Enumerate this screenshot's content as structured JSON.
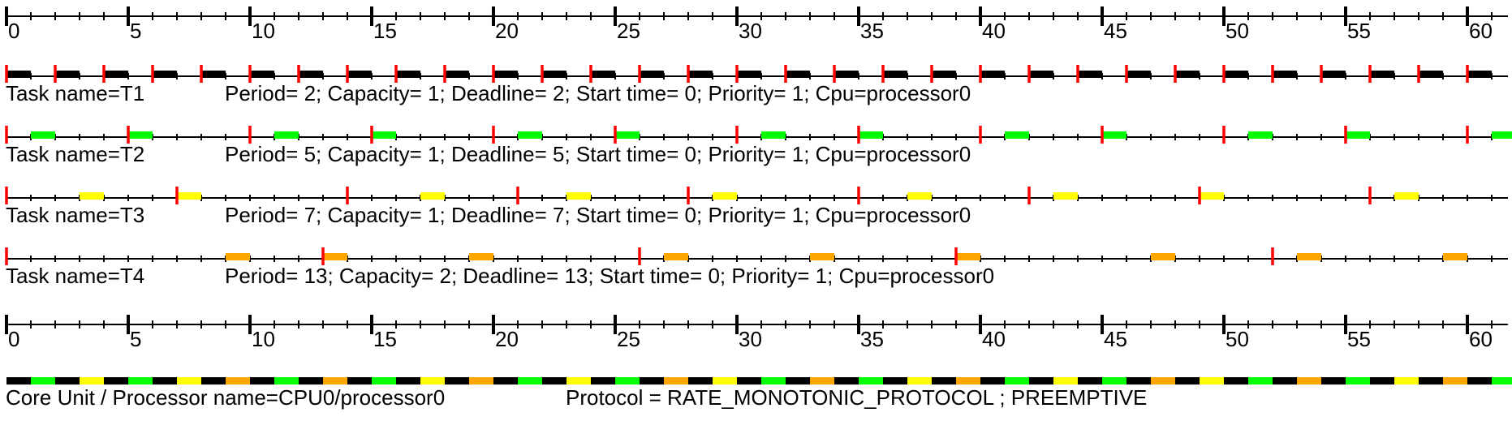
{
  "chart_data": {
    "type": "gantt",
    "time_axis": {
      "min": 0,
      "max": 61,
      "major_step": 5,
      "minor_step": 1,
      "tick_labels": [
        "0",
        "5",
        "10",
        "15",
        "20",
        "25",
        "30",
        "35",
        "40",
        "45",
        "50",
        "55",
        "60"
      ]
    },
    "tasks": [
      {
        "label": "Task name=T1",
        "details": "Period= 2; Capacity= 1; Deadline= 2; Start time= 0; Priority= 1; Cpu=processor0",
        "period": 2,
        "color": "#000000",
        "exec": [
          0,
          2,
          4,
          6,
          8,
          10,
          12,
          14,
          16,
          18,
          20,
          22,
          24,
          26,
          28,
          30,
          32,
          34,
          36,
          38,
          40,
          42,
          44,
          46,
          48,
          50,
          52,
          54,
          56,
          58,
          60
        ]
      },
      {
        "label": "Task name=T2",
        "details": "Period= 5; Capacity= 1; Deadline= 5; Start time= 0; Priority= 1; Cpu=processor0",
        "period": 5,
        "color": "#00ff00",
        "exec": [
          1,
          5,
          11,
          15,
          21,
          25,
          31,
          35,
          41,
          45,
          51,
          55,
          61
        ]
      },
      {
        "label": "Task name=T3",
        "details": "Period= 7; Capacity= 1; Deadline= 7; Start time= 0; Priority= 1; Cpu=processor0",
        "period": 7,
        "color": "#ffff00",
        "exec": [
          3,
          7,
          17,
          23,
          29,
          37,
          43,
          49,
          57
        ]
      },
      {
        "label": "Task name=T4",
        "details": "Period= 13; Capacity= 2; Deadline= 13; Start time= 0; Priority= 1; Cpu=processor0",
        "period": 13,
        "color": "#ffa500",
        "exec": [
          9,
          13,
          19,
          27,
          33,
          39,
          47,
          53,
          59
        ]
      }
    ],
    "processor": {
      "label": "Core Unit / Processor name=CPU0/processor0",
      "protocol": "Protocol = RATE_MONOTONIC_PROTOCOL ; PREEMPTIVE"
    },
    "colors": {
      "release_marker": "#ff0000",
      "axis": "#000000"
    }
  }
}
